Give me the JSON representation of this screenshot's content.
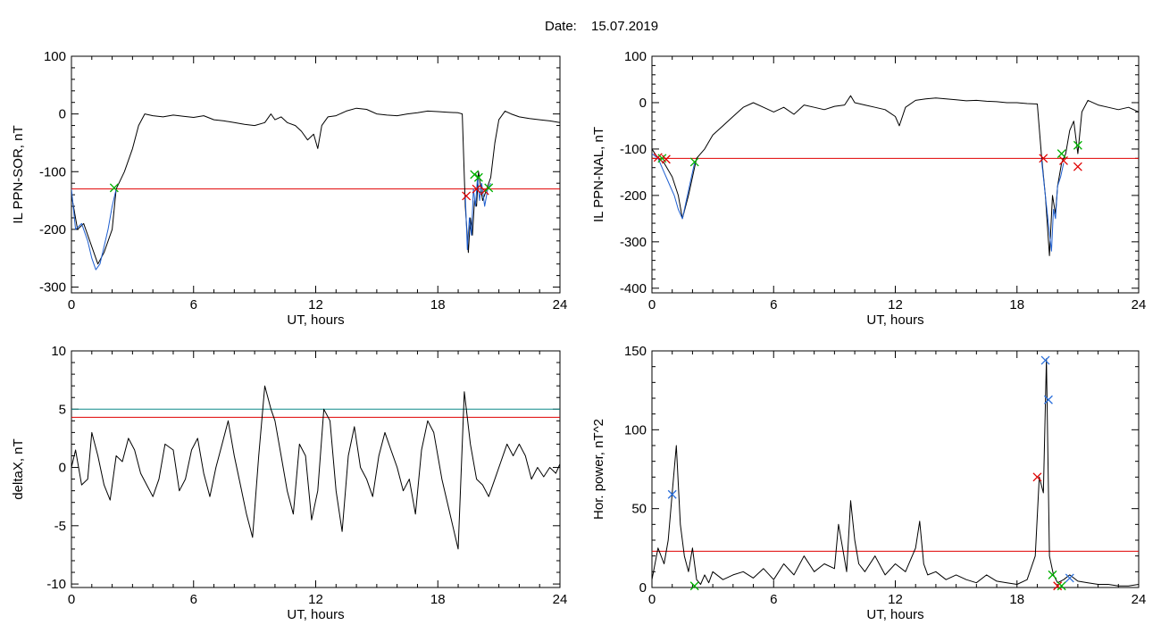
{
  "figure": {
    "date_label": "Date:",
    "date_value": "15.07.2019"
  },
  "colors": {
    "black": "#000000",
    "blue": "#1f5fd0",
    "red": "#e00000",
    "green": "#00b000",
    "teal": "#0e8a8a",
    "cross_blue": "#2a6fdb"
  },
  "chart_data": [
    {
      "type": "line",
      "ylabel": "IL PPN-SOR, nT",
      "xlabel": "UT, hours",
      "xlim": [
        0,
        24
      ],
      "ylim": [
        -310,
        100
      ],
      "xticks": [
        0,
        6,
        12,
        18,
        24
      ],
      "yticks": [
        100,
        0,
        -100,
        -200,
        -300
      ],
      "series": [
        {
          "color": "black",
          "x": [
            0,
            0.3,
            0.6,
            1.0,
            1.3,
            1.6,
            2.0,
            2.2,
            2.6,
            3.0,
            3.3,
            3.6,
            4.0,
            4.5,
            5.0,
            5.5,
            6.0,
            6.5,
            7.0,
            7.5,
            8.0,
            8.5,
            9.0,
            9.5,
            9.8,
            10.0,
            10.3,
            10.6,
            11.0,
            11.3,
            11.6,
            11.9,
            12.1,
            12.3,
            12.6,
            13.0,
            13.5,
            14.0,
            14.5,
            15.0,
            15.5,
            16.0,
            16.5,
            17.0,
            17.5,
            18.0,
            18.5,
            19.0,
            19.2,
            19.35,
            19.5,
            19.6,
            19.7,
            19.8,
            19.9,
            20.0,
            20.2,
            20.4,
            20.6,
            20.8,
            21.0,
            21.3,
            21.6,
            22.0,
            22.5,
            23.0,
            23.5,
            24.0
          ],
          "y": [
            -140,
            -200,
            -190,
            -230,
            -260,
            -240,
            -200,
            -130,
            -100,
            -60,
            -20,
            0,
            -3,
            -5,
            -2,
            -4,
            -6,
            -3,
            -10,
            -12,
            -15,
            -18,
            -20,
            -15,
            0,
            -10,
            -5,
            -15,
            -20,
            -30,
            -45,
            -35,
            -60,
            -20,
            -5,
            -3,
            5,
            10,
            8,
            0,
            -2,
            -3,
            0,
            2,
            5,
            4,
            3,
            2,
            0,
            -160,
            -240,
            -180,
            -210,
            -150,
            -160,
            -100,
            -150,
            -130,
            -110,
            -50,
            -10,
            5,
            0,
            -5,
            -8,
            -10,
            -12,
            -15
          ]
        },
        {
          "color": "blue",
          "x": [
            0,
            0.2,
            0.5,
            0.8,
            1.0,
            1.2,
            1.4,
            1.6,
            1.8,
            2.0,
            2.2
          ],
          "y": [
            -130,
            -200,
            -190,
            -220,
            -250,
            -270,
            -260,
            -230,
            -200,
            -160,
            -130
          ]
        },
        {
          "color": "blue",
          "x": [
            19.35,
            19.45,
            19.55,
            19.65,
            19.75,
            19.85,
            19.95,
            20.05,
            20.15,
            20.3,
            20.45,
            20.6
          ],
          "y": [
            -140,
            -235,
            -180,
            -210,
            -130,
            -160,
            -110,
            -150,
            -120,
            -160,
            -130,
            -120
          ]
        }
      ],
      "hlines": [
        {
          "y": -130,
          "color": "red"
        }
      ],
      "markers": [
        {
          "x": 2.1,
          "y": -128,
          "color": "green"
        },
        {
          "x": 19.4,
          "y": -142,
          "color": "red"
        },
        {
          "x": 19.8,
          "y": -105,
          "color": "green"
        },
        {
          "x": 19.9,
          "y": -130,
          "color": "red"
        },
        {
          "x": 20.0,
          "y": -110,
          "color": "green"
        },
        {
          "x": 20.3,
          "y": -133,
          "color": "red"
        },
        {
          "x": 20.5,
          "y": -128,
          "color": "green"
        }
      ]
    },
    {
      "type": "line",
      "ylabel": "IL PPN-NAL, nT",
      "xlabel": "UT, hours",
      "xlim": [
        0,
        24
      ],
      "ylim": [
        -410,
        100
      ],
      "xticks": [
        0,
        6,
        12,
        18,
        24
      ],
      "yticks": [
        100,
        0,
        -100,
        -200,
        -300,
        -400
      ],
      "series": [
        {
          "color": "black",
          "x": [
            0,
            0.3,
            0.6,
            1.0,
            1.3,
            1.5,
            1.8,
            2.2,
            2.6,
            3.0,
            3.5,
            4.0,
            4.5,
            5.0,
            5.5,
            6.0,
            6.5,
            7.0,
            7.5,
            8.0,
            8.5,
            9.0,
            9.5,
            9.8,
            10.0,
            10.5,
            11.0,
            11.5,
            12.0,
            12.2,
            12.5,
            13.0,
            13.5,
            14.0,
            14.5,
            15.0,
            15.5,
            16.0,
            16.5,
            17.0,
            17.5,
            18.0,
            18.5,
            19.0,
            19.2,
            19.4,
            19.6,
            19.75,
            19.9,
            20.0,
            20.2,
            20.4,
            20.6,
            20.8,
            21.0,
            21.2,
            21.5,
            22.0,
            22.5,
            23.0,
            23.5,
            24.0
          ],
          "y": [
            -100,
            -120,
            -130,
            -160,
            -200,
            -250,
            -200,
            -120,
            -100,
            -70,
            -50,
            -30,
            -10,
            0,
            -10,
            -20,
            -10,
            -25,
            -5,
            -10,
            -15,
            -8,
            -5,
            15,
            0,
            -5,
            -10,
            -15,
            -30,
            -50,
            -10,
            5,
            8,
            10,
            8,
            6,
            4,
            5,
            3,
            2,
            0,
            0,
            -2,
            -3,
            -110,
            -200,
            -330,
            -200,
            -240,
            -180,
            -130,
            -110,
            -60,
            -40,
            -110,
            -20,
            5,
            -5,
            -10,
            -15,
            -10,
            -20
          ]
        },
        {
          "color": "blue",
          "x": [
            0,
            0.3,
            0.6,
            0.9,
            1.1,
            1.3,
            1.5,
            1.7,
            1.9,
            2.1
          ],
          "y": [
            -110,
            -120,
            -150,
            -180,
            -200,
            -230,
            -250,
            -210,
            -170,
            -130
          ]
        },
        {
          "color": "blue",
          "x": [
            19.2,
            19.4,
            19.55,
            19.7,
            19.8,
            19.9,
            20.0,
            20.15,
            20.3
          ],
          "y": [
            -120,
            -200,
            -260,
            -320,
            -230,
            -250,
            -180,
            -160,
            -130
          ]
        }
      ],
      "hlines": [
        {
          "y": -120,
          "color": "red"
        }
      ],
      "markers": [
        {
          "x": 0.3,
          "y": -118,
          "color": "red"
        },
        {
          "x": 0.5,
          "y": -120,
          "color": "green"
        },
        {
          "x": 0.7,
          "y": -122,
          "color": "red"
        },
        {
          "x": 2.1,
          "y": -128,
          "color": "green"
        },
        {
          "x": 19.3,
          "y": -120,
          "color": "red"
        },
        {
          "x": 20.2,
          "y": -110,
          "color": "green"
        },
        {
          "x": 20.3,
          "y": -125,
          "color": "red"
        },
        {
          "x": 21.0,
          "y": -92,
          "color": "green"
        },
        {
          "x": 21.0,
          "y": -138,
          "color": "red"
        }
      ]
    },
    {
      "type": "line",
      "ylabel": "deltaX, nT",
      "xlabel": "UT, hours",
      "xlim": [
        0,
        24
      ],
      "ylim": [
        -10.3,
        10
      ],
      "xticks": [
        0,
        6,
        12,
        18,
        24
      ],
      "yticks": [
        10,
        5,
        0,
        -5,
        -10
      ],
      "ytick_labels": [
        "10",
        "5",
        "0",
        "-5",
        "-10"
      ],
      "series": [
        {
          "color": "black",
          "x": [
            0,
            0.2,
            0.5,
            0.8,
            1.0,
            1.3,
            1.6,
            1.9,
            2.2,
            2.5,
            2.8,
            3.1,
            3.4,
            3.7,
            4.0,
            4.3,
            4.6,
            5.0,
            5.3,
            5.6,
            5.9,
            6.2,
            6.5,
            6.8,
            7.1,
            7.4,
            7.7,
            8.0,
            8.3,
            8.6,
            8.9,
            9.2,
            9.5,
            9.8,
            10.0,
            10.3,
            10.6,
            10.9,
            11.2,
            11.5,
            11.8,
            12.1,
            12.4,
            12.7,
            13.0,
            13.3,
            13.6,
            13.9,
            14.2,
            14.5,
            14.8,
            15.1,
            15.4,
            15.7,
            16.0,
            16.3,
            16.6,
            16.9,
            17.2,
            17.5,
            17.8,
            18.2,
            18.6,
            19.0,
            19.3,
            19.6,
            19.9,
            20.2,
            20.5,
            20.8,
            21.1,
            21.4,
            21.7,
            22.0,
            22.3,
            22.6,
            22.9,
            23.2,
            23.5,
            23.8,
            24.0
          ],
          "y": [
            0,
            1.5,
            -1.5,
            -1.0,
            3.0,
            1.0,
            -1.5,
            -2.8,
            1.0,
            0.5,
            2.5,
            1.5,
            -0.5,
            -1.5,
            -2.5,
            -1.0,
            2.0,
            1.5,
            -2.0,
            -1.0,
            1.5,
            2.5,
            -0.5,
            -2.5,
            0,
            2.0,
            4.0,
            1.0,
            -1.5,
            -4.0,
            -6.0,
            1.0,
            7.0,
            5.0,
            4.0,
            1.0,
            -2.0,
            -4.0,
            2.0,
            1.0,
            -4.5,
            -2.0,
            5.0,
            4.0,
            -2.0,
            -5.5,
            1.0,
            3.5,
            0,
            -1.0,
            -2.5,
            1.0,
            3.0,
            1.5,
            0,
            -2.0,
            -1.0,
            -4.0,
            1.5,
            4.0,
            3.0,
            -1.0,
            -4.0,
            -7.0,
            6.5,
            2.0,
            -1.0,
            -1.5,
            -2.5,
            -1.0,
            0.5,
            2.0,
            1.0,
            2.0,
            1.0,
            -1.0,
            0,
            -0.8,
            0,
            -0.5,
            0.3
          ]
        }
      ],
      "hlines": [
        {
          "y": 5.0,
          "color": "teal"
        },
        {
          "y": 4.3,
          "color": "red"
        }
      ],
      "markers": []
    },
    {
      "type": "line",
      "ylabel": "Hor. power, nT^2",
      "xlabel": "UT, hours",
      "xlim": [
        0,
        24
      ],
      "ylim": [
        0,
        150
      ],
      "xticks": [
        0,
        6,
        12,
        18,
        24
      ],
      "yticks": [
        150,
        100,
        50,
        0
      ],
      "series": [
        {
          "color": "black",
          "x": [
            0,
            0.3,
            0.6,
            0.8,
            1.0,
            1.2,
            1.4,
            1.6,
            1.8,
            2.0,
            2.2,
            2.4,
            2.6,
            2.8,
            3.0,
            3.5,
            4.0,
            4.5,
            5.0,
            5.5,
            6.0,
            6.5,
            7.0,
            7.5,
            8.0,
            8.5,
            9.0,
            9.2,
            9.4,
            9.6,
            9.8,
            10.0,
            10.2,
            10.5,
            11.0,
            11.5,
            12.0,
            12.5,
            13.0,
            13.2,
            13.4,
            13.6,
            14.0,
            14.5,
            15.0,
            15.5,
            16.0,
            16.5,
            17.0,
            17.5,
            18.0,
            18.5,
            18.9,
            19.1,
            19.3,
            19.45,
            19.6,
            19.8,
            20.0,
            20.3,
            20.6,
            21.0,
            21.5,
            22.0,
            22.5,
            23.0,
            23.5,
            24.0
          ],
          "y": [
            5,
            25,
            15,
            30,
            60,
            90,
            40,
            20,
            10,
            25,
            5,
            2,
            8,
            3,
            10,
            5,
            8,
            10,
            6,
            12,
            5,
            15,
            8,
            20,
            10,
            15,
            12,
            40,
            25,
            10,
            55,
            30,
            15,
            10,
            20,
            8,
            15,
            10,
            25,
            42,
            15,
            8,
            10,
            5,
            8,
            5,
            3,
            8,
            4,
            3,
            2,
            5,
            20,
            70,
            60,
            145,
            20,
            8,
            3,
            5,
            8,
            4,
            3,
            2,
            2,
            1,
            1,
            2
          ]
        }
      ],
      "hlines": [
        {
          "y": 23,
          "color": "red"
        }
      ],
      "markers": [
        {
          "x": 1.0,
          "y": 59,
          "color": "cross_blue"
        },
        {
          "x": 2.1,
          "y": 1,
          "color": "green"
        },
        {
          "x": 19.0,
          "y": 70,
          "color": "red"
        },
        {
          "x": 19.4,
          "y": 144,
          "color": "cross_blue"
        },
        {
          "x": 19.55,
          "y": 119,
          "color": "cross_blue"
        },
        {
          "x": 19.75,
          "y": 8,
          "color": "green"
        },
        {
          "x": 20.0,
          "y": 1,
          "color": "red"
        },
        {
          "x": 20.2,
          "y": 1,
          "color": "green"
        },
        {
          "x": 20.6,
          "y": 6,
          "color": "cross_blue"
        }
      ]
    }
  ]
}
